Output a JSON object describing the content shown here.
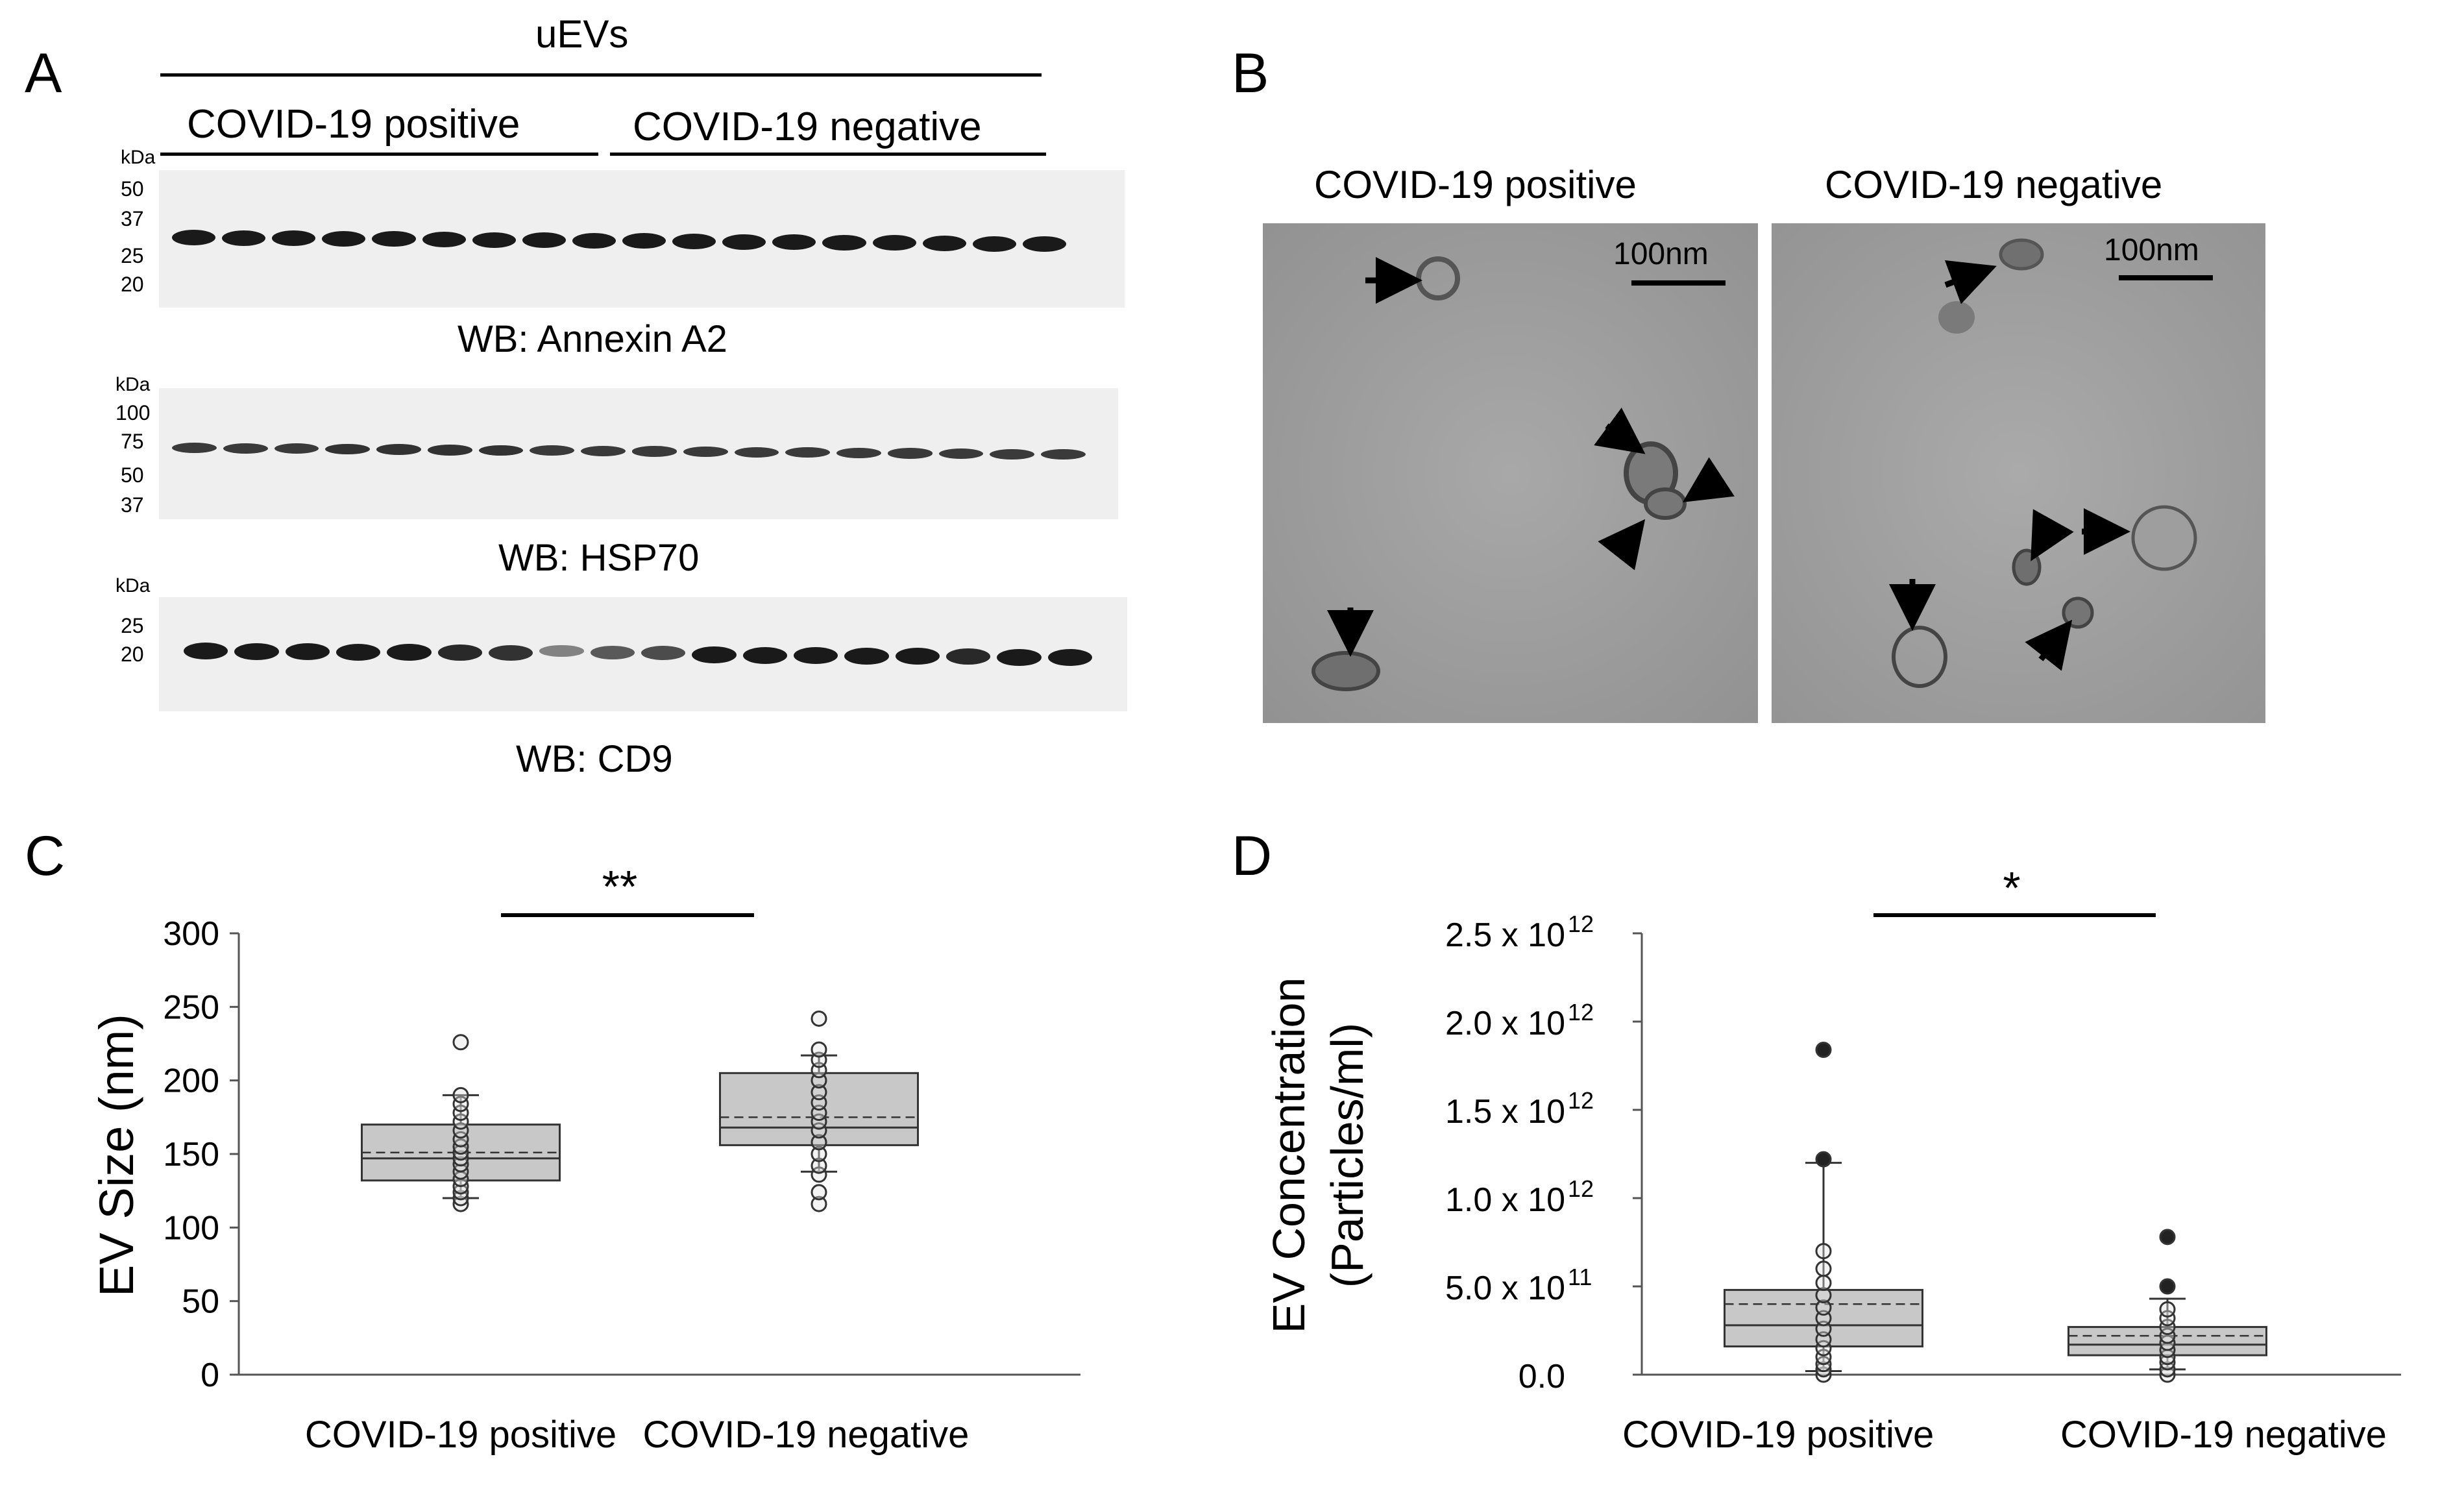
{
  "panels": {
    "A": {
      "letter": "A",
      "group_header": "uEVs",
      "groups": [
        "COVID-19 positive",
        "COVID-19 negative"
      ],
      "blots": [
        {
          "kda": "kDa",
          "markers": [
            "50",
            "37",
            "25",
            "20"
          ],
          "caption": "WB: Annexin A2",
          "lanes": 18,
          "band_intensity": [
            1,
            1,
            1,
            1,
            1,
            1,
            1,
            1,
            1,
            1,
            1,
            1,
            1,
            1,
            1,
            1,
            1,
            1
          ]
        },
        {
          "kda": "kDa",
          "markers": [
            "100",
            "75",
            "50",
            "37"
          ],
          "caption": "WB: HSP70",
          "lanes": 18,
          "band_intensity": [
            0.8,
            0.8,
            0.8,
            0.85,
            0.85,
            0.85,
            0.85,
            0.8,
            0.8,
            0.8,
            0.8,
            0.8,
            0.8,
            0.8,
            0.8,
            0.8,
            0.8,
            0.8
          ]
        },
        {
          "kda": "kDa",
          "markers": [
            "25",
            "20"
          ],
          "caption": "WB: CD9",
          "lanes": 18,
          "band_intensity": [
            1,
            1,
            1,
            1,
            1,
            0.9,
            0.85,
            0.35,
            0.6,
            0.7,
            1,
            1,
            1,
            1,
            1,
            0.9,
            1,
            1
          ]
        }
      ]
    },
    "B": {
      "letter": "B",
      "images": [
        {
          "title": "COVID-19 positive",
          "scale_bar": "100nm"
        },
        {
          "title": "COVID-19 negative",
          "scale_bar": "100nm"
        }
      ]
    },
    "C": {
      "letter": "C",
      "ylabel": "EV Size (nm)",
      "yticks": [
        "300",
        "250",
        "200",
        "150",
        "100",
        "50",
        "0"
      ],
      "categories": [
        "COVID-19 positive",
        "COVID-19 negative"
      ],
      "significance": "**"
    },
    "D": {
      "letter": "D",
      "ylabel_line1": "EV Concentration",
      "ylabel_line2": "(Particles/ml)",
      "yticks": [
        {
          "mant": "2.5 x 10",
          "exp": "12"
        },
        {
          "mant": "2.0 x 10",
          "exp": "12"
        },
        {
          "mant": "1.5 x 10",
          "exp": "12"
        },
        {
          "mant": "1.0 x 10",
          "exp": "12"
        },
        {
          "mant": "5.0 x 10",
          "exp": "11"
        },
        {
          "mant": "0.0",
          "exp": ""
        }
      ],
      "categories": [
        "COVID-19 positive",
        "COVID-19 negative"
      ],
      "significance": "*"
    }
  },
  "chart_data": [
    {
      "type": "box",
      "panel": "C",
      "ylabel": "EV Size (nm)",
      "ylim": [
        0,
        300
      ],
      "yticks": [
        0,
        50,
        100,
        150,
        200,
        250,
        300
      ],
      "categories": [
        "COVID-19 positive",
        "COVID-19 negative"
      ],
      "boxes": [
        {
          "category": "COVID-19 positive",
          "whisker_low": 120,
          "q1": 132,
          "median": 147,
          "mean": 151,
          "q3": 170,
          "whisker_high": 190,
          "points": [
            116,
            120,
            124,
            128,
            133,
            138,
            143,
            147,
            151,
            155,
            160,
            166,
            172,
            178,
            184,
            190,
            226
          ]
        },
        {
          "category": "COVID-19 negative",
          "whisker_low": 138,
          "q1": 156,
          "median": 168,
          "mean": 175,
          "q3": 205,
          "whisker_high": 217,
          "points": [
            116,
            124,
            136,
            142,
            150,
            158,
            166,
            172,
            178,
            185,
            192,
            200,
            207,
            214,
            221,
            242
          ]
        }
      ],
      "significance": {
        "label": "**",
        "between": [
          "COVID-19 positive",
          "COVID-19 negative"
        ]
      }
    },
    {
      "type": "box",
      "panel": "D",
      "ylabel": "EV Concentration (Particles/ml)",
      "ylim": [
        0,
        2500000000000.0
      ],
      "yticks": [
        0,
        500000000000.0,
        1000000000000.0,
        1500000000000.0,
        2000000000000.0,
        2500000000000.0
      ],
      "categories": [
        "COVID-19 positive",
        "COVID-19 negative"
      ],
      "boxes": [
        {
          "category": "COVID-19 positive",
          "whisker_low": 20000000000.0,
          "q1": 160000000000.0,
          "median": 280000000000.0,
          "mean": 400000000000.0,
          "q3": 480000000000.0,
          "whisker_high": 1200000000000.0,
          "points": [
            0.0,
            0.03,
            0.06,
            0.1,
            0.15,
            0.2,
            0.26,
            0.32,
            0.38,
            0.45,
            0.52,
            0.6,
            0.7,
            1.22,
            1.84
          ],
          "filled_points": [
            1.84,
            1.22
          ]
        },
        {
          "category": "COVID-19 negative",
          "whisker_low": 30000000000.0,
          "q1": 110000000000.0,
          "median": 170000000000.0,
          "mean": 220000000000.0,
          "q3": 270000000000.0,
          "whisker_high": 430000000000.0,
          "points": [
            0.0,
            0.03,
            0.07,
            0.1,
            0.14,
            0.18,
            0.22,
            0.27,
            0.32,
            0.37,
            0.5,
            0.78
          ],
          "filled_points": [
            0.78,
            0.5
          ]
        }
      ],
      "significance": {
        "label": "*",
        "between": [
          "COVID-19 positive",
          "COVID-19 negative"
        ]
      }
    }
  ]
}
